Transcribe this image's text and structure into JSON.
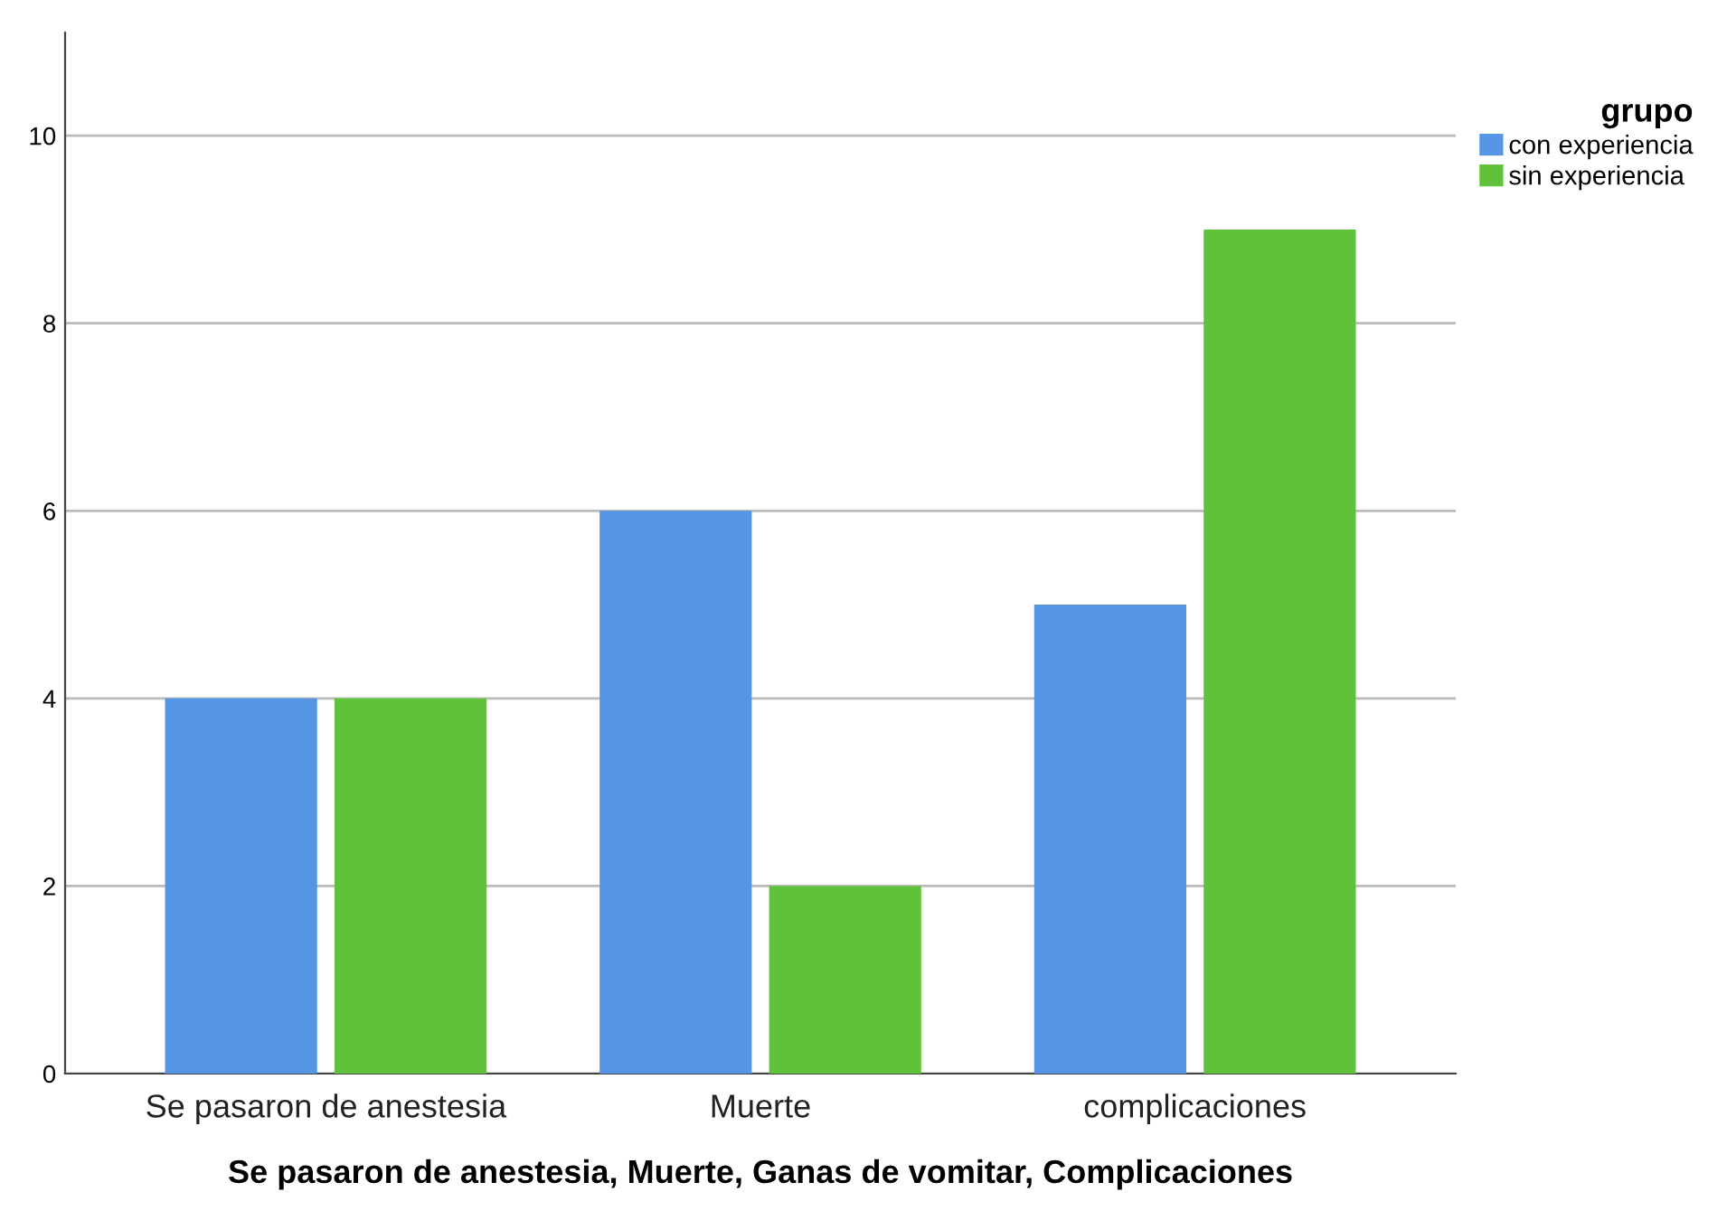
{
  "chart_data": {
    "type": "bar",
    "xlabel": "Se pasaron de anestesia, Muerte, Ganas de vomitar, Complicaciones",
    "categories": [
      "Se pasaron de anestesia",
      "Muerte",
      "complicaciones"
    ],
    "series": [
      {
        "name": "con experiencia",
        "color": "#5595e3",
        "values": [
          4,
          6,
          5
        ]
      },
      {
        "name": "sin experiencia",
        "color": "#60c23a",
        "values": [
          4,
          2,
          9
        ]
      }
    ],
    "legend_title": "grupo",
    "legend": "top right",
    "ylim": [
      0,
      11.1
    ],
    "yticks": [
      0,
      2,
      4,
      6,
      8,
      10
    ],
    "grid": "y"
  }
}
